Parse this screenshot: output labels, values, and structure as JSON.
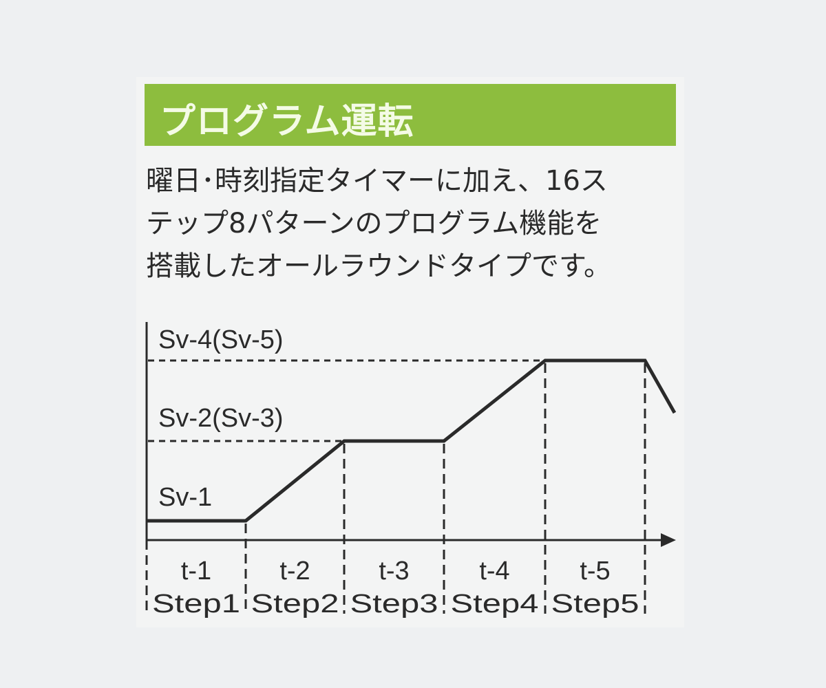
{
  "header": {
    "title": "プログラム運転",
    "color": "#8dbd3e"
  },
  "description": [
    "曜日･時刻指定タイマーに加え、16ス",
    "テップ8パターンのプログラム機能を",
    "搭載したオールラウンドタイプです。"
  ],
  "diagram": {
    "levels": [
      {
        "label": "Sv-1"
      },
      {
        "label": "Sv-2(Sv-3)"
      },
      {
        "label": "Sv-4(Sv-5)"
      }
    ],
    "steps": [
      {
        "time": "t-1",
        "step": "Step1"
      },
      {
        "time": "t-2",
        "step": "Step2"
      },
      {
        "time": "t-3",
        "step": "Step3"
      },
      {
        "time": "t-4",
        "step": "Step4"
      },
      {
        "time": "t-5",
        "step": "Step5"
      }
    ],
    "line_color": "#2a2a2a"
  }
}
